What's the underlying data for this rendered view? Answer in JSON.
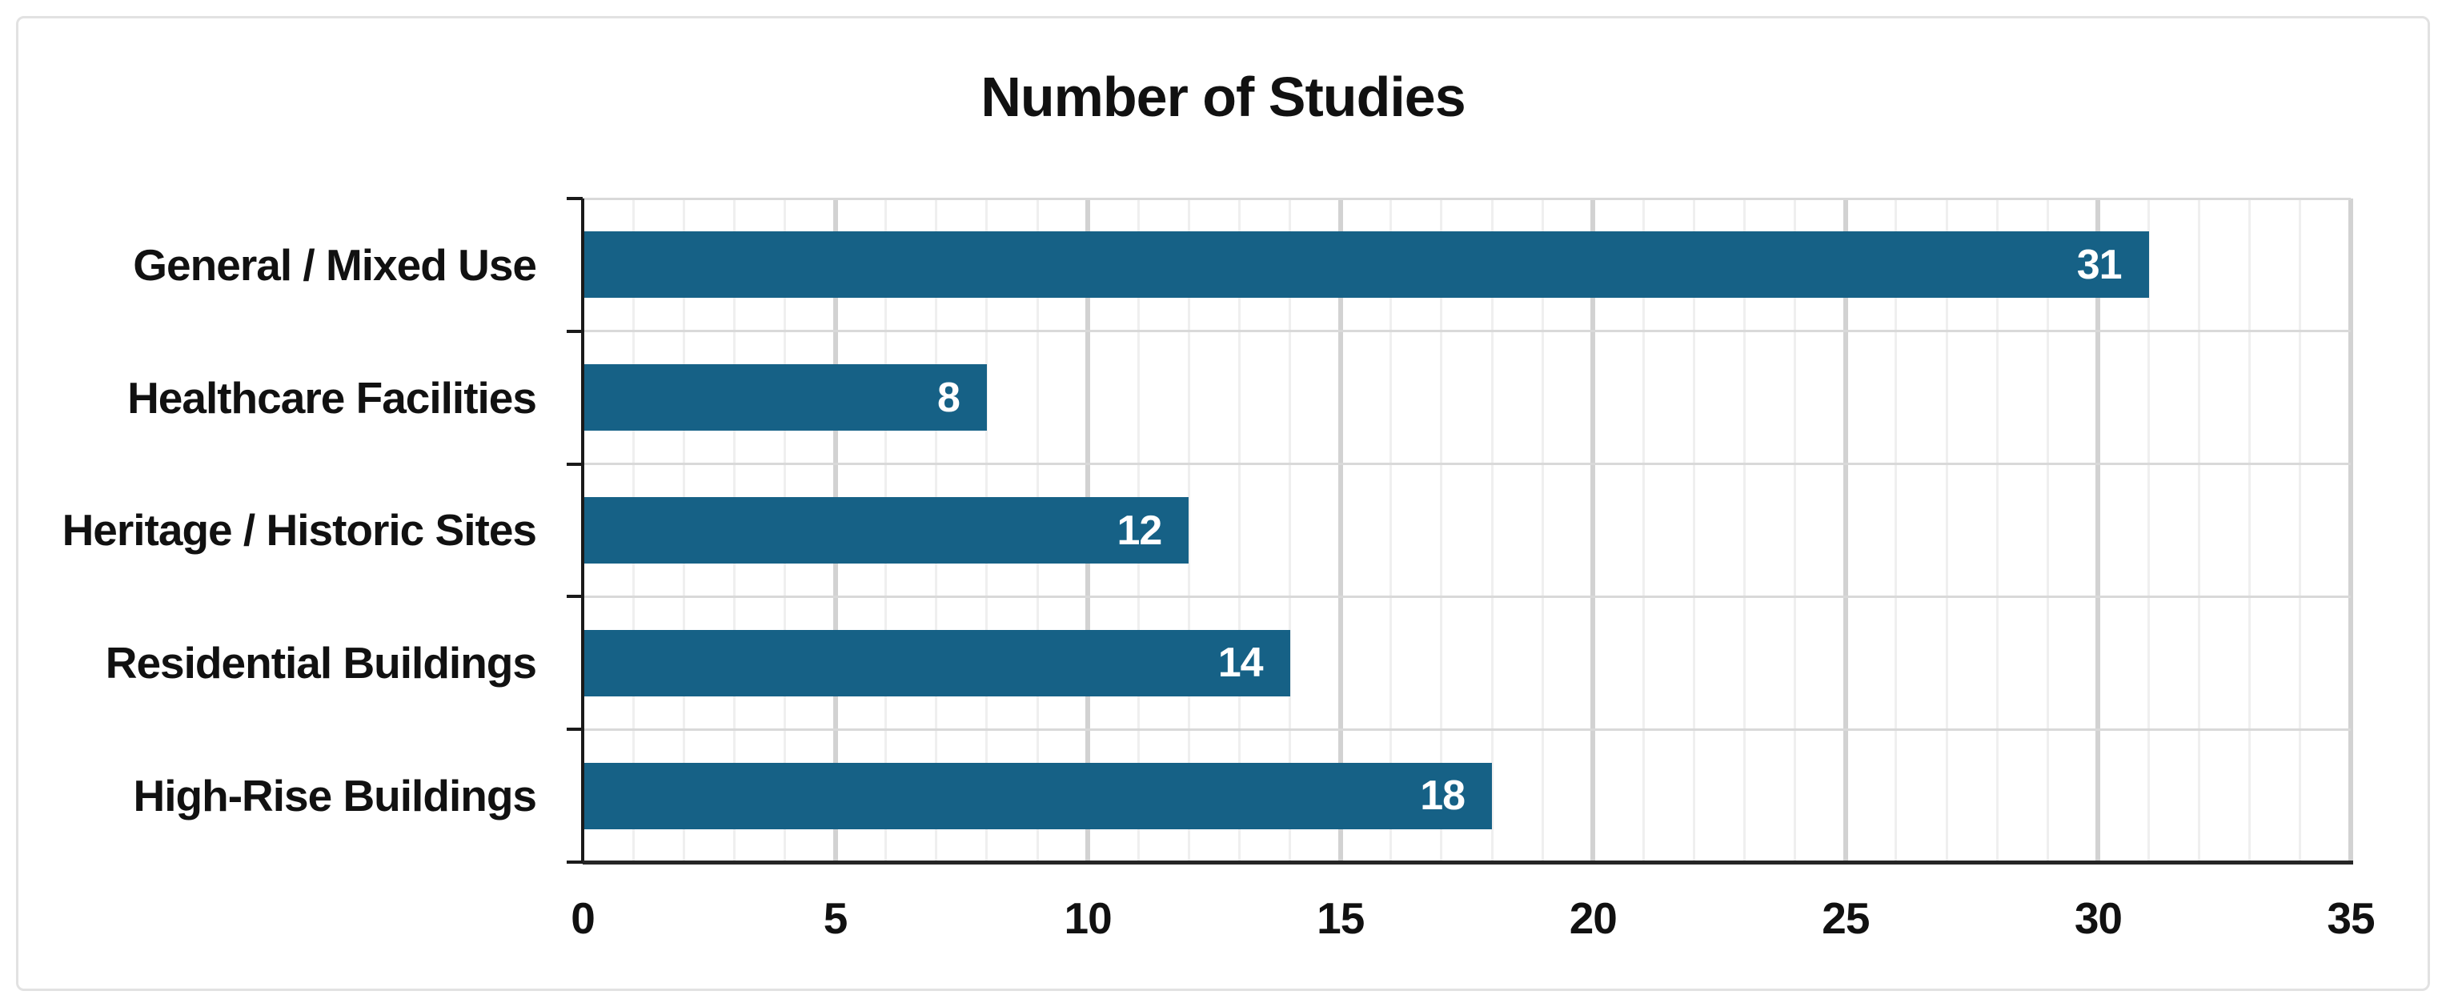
{
  "chart_data": {
    "type": "bar",
    "orientation": "horizontal",
    "title": "Number of Studies",
    "categories": [
      "General / Mixed Use",
      "Healthcare Facilities",
      "Heritage / Historic Sites",
      "Residential Buildings",
      "High-Rise Buildings"
    ],
    "values": [
      31,
      8,
      12,
      14,
      18
    ],
    "value_labels": [
      "31",
      "8",
      "12",
      "14",
      "18"
    ],
    "xlabel": "",
    "ylabel": "",
    "xlim": [
      0,
      35
    ],
    "x_ticks": [
      0,
      5,
      10,
      15,
      20,
      25,
      30,
      35
    ],
    "x_minor_unit": 1,
    "grid": "vertical major and minor gridlines on, horizontal category boundary lines on",
    "legend": "none",
    "colors": {
      "bar": "#166186",
      "value_label": "#ffffff",
      "title_text": "#111111",
      "axis_text": "#111111",
      "x_axis_line": "#262626",
      "y_axis_line": "#1a1a1a",
      "major_grid": "#d2d2d2",
      "minor_grid": "#efefef",
      "band_boundary_line": "#d9d9d9",
      "frame_border": "#e2e2e2",
      "background": "#ffffff"
    }
  }
}
